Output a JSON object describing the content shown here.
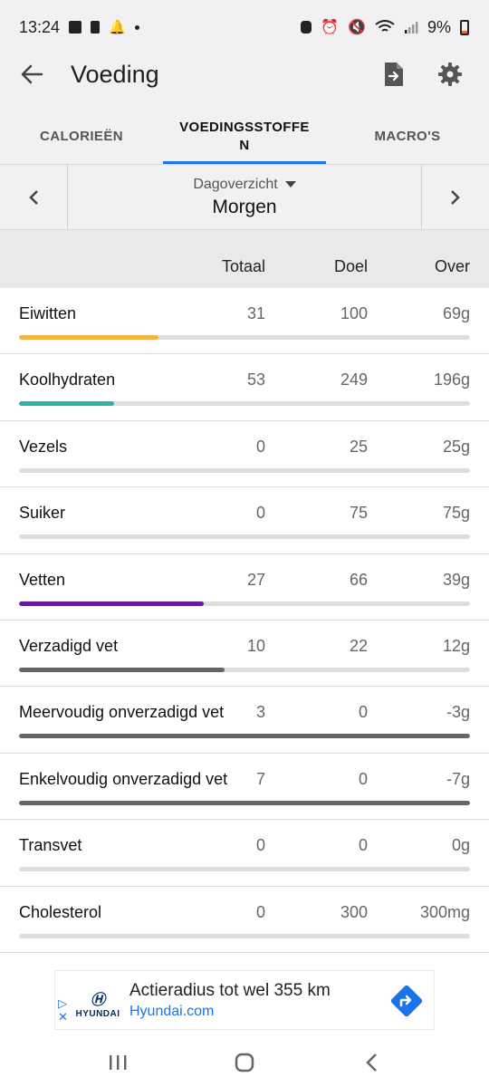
{
  "status_bar": {
    "time": "13:24",
    "battery": "9%"
  },
  "app_bar": {
    "title": "Voeding"
  },
  "tabs": [
    {
      "label": "CALORIEËN",
      "active": false
    },
    {
      "label": "VOEDINGSSTOFFE\nN",
      "active": true
    },
    {
      "label": "MACRO'S",
      "active": false
    }
  ],
  "day_nav": {
    "view_label": "Dagoverzicht",
    "day_label": "Morgen"
  },
  "columns": {
    "total": "Totaal",
    "goal": "Doel",
    "over": "Over"
  },
  "nutrients": [
    {
      "name": "Eiwitten",
      "total": "31",
      "goal": "100",
      "over": "69g",
      "progress": 0.31,
      "color": "#f6b23c"
    },
    {
      "name": "Koolhydraten",
      "total": "53",
      "goal": "249",
      "over": "196g",
      "progress": 0.21,
      "color": "#2bb5a8"
    },
    {
      "name": "Vezels",
      "total": "0",
      "goal": "25",
      "over": "25g",
      "progress": 0,
      "color": "#777777"
    },
    {
      "name": "Suiker",
      "total": "0",
      "goal": "75",
      "over": "75g",
      "progress": 0,
      "color": "#777777"
    },
    {
      "name": "Vetten",
      "total": "27",
      "goal": "66",
      "over": "39g",
      "progress": 0.41,
      "color": "#6a1b9a"
    },
    {
      "name": "Verzadigd vet",
      "total": "10",
      "goal": "22",
      "over": "12g",
      "progress": 0.455,
      "color": "#666666"
    },
    {
      "name": "Meervoudig onverzadigd vet",
      "total": "3",
      "goal": "0",
      "over": "-3g",
      "progress": 1,
      "color": "#666666"
    },
    {
      "name": "Enkelvoudig onverzadigd vet",
      "total": "7",
      "goal": "0",
      "over": "-7g",
      "progress": 1,
      "color": "#666666"
    },
    {
      "name": "Transvet",
      "total": "0",
      "goal": "0",
      "over": "0g",
      "progress": 0,
      "color": "#777777"
    },
    {
      "name": "Cholesterol",
      "total": "0",
      "goal": "300",
      "over": "300mg",
      "progress": 0,
      "color": "#777777"
    }
  ],
  "ad": {
    "brand": "HYUNDAI",
    "title": "Actieradius tot wel 355 km",
    "url": "Hyundai.com",
    "cta_color": "#1a73e8"
  }
}
